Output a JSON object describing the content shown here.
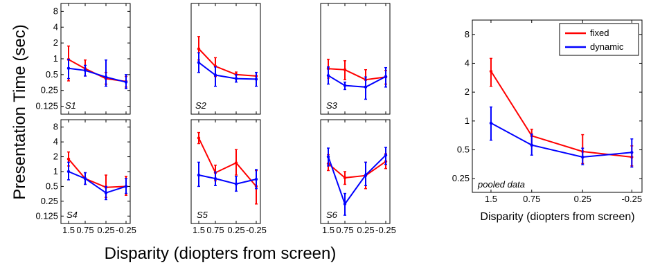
{
  "figure": {
    "ylabel": "Presentation Time (sec)",
    "xlabel": "Disparity (diopters from screen)",
    "pooled_xlabel": "Disparity (diopters from screen)"
  },
  "chart_data": [
    {
      "type": "line",
      "panel_label": "S1",
      "x": [
        "1.5",
        "0.75",
        "0.25",
        "-0.25"
      ],
      "ylim": [
        0.0884,
        11.3
      ],
      "yscale": "log",
      "yticks": [
        "8",
        "4",
        "2",
        "1",
        "0.5",
        "0.25",
        "0.125"
      ],
      "show_xticks": false,
      "series": [
        {
          "values": [
            0.97,
            0.65,
            0.42,
            0.37
          ],
          "err_low": [
            0.38,
            0.47,
            0.33,
            0.29
          ],
          "err_high": [
            1.75,
            0.95,
            0.55,
            0.46
          ],
          "color": "#ff0000"
        },
        {
          "values": [
            0.66,
            0.6,
            0.45,
            0.36
          ],
          "err_low": [
            0.42,
            0.47,
            0.3,
            0.27
          ],
          "err_high": [
            0.98,
            0.75,
            0.95,
            0.5
          ],
          "color": "#0000ff"
        }
      ]
    },
    {
      "type": "line",
      "panel_label": "S2",
      "x": [
        "1.5",
        "0.75",
        "0.25",
        "-0.25"
      ],
      "ylim": [
        0.0884,
        11.3
      ],
      "yscale": "log",
      "yticks": [],
      "show_xticks": false,
      "series": [
        {
          "values": [
            1.55,
            0.72,
            0.5,
            0.47
          ],
          "err_low": [
            0.95,
            0.46,
            0.43,
            0.4
          ],
          "err_high": [
            2.65,
            1.05,
            0.56,
            0.55
          ],
          "color": "#ff0000"
        },
        {
          "values": [
            0.85,
            0.49,
            0.42,
            0.41
          ],
          "err_low": [
            0.55,
            0.3,
            0.36,
            0.3
          ],
          "err_high": [
            1.3,
            0.7,
            0.5,
            0.55
          ],
          "color": "#0000ff"
        }
      ]
    },
    {
      "type": "line",
      "panel_label": "S3",
      "x": [
        "1.5",
        "0.75",
        "0.25",
        "-0.25"
      ],
      "ylim": [
        0.0884,
        11.3
      ],
      "yscale": "log",
      "yticks": [],
      "show_xticks": false,
      "series": [
        {
          "values": [
            0.65,
            0.62,
            0.4,
            0.45
          ],
          "err_low": [
            0.43,
            0.4,
            0.3,
            0.33
          ],
          "err_high": [
            0.98,
            0.92,
            0.62,
            0.6
          ],
          "color": "#ff0000"
        },
        {
          "values": [
            0.48,
            0.31,
            0.29,
            0.46
          ],
          "err_low": [
            0.33,
            0.26,
            0.17,
            0.29
          ],
          "err_high": [
            0.7,
            0.36,
            0.45,
            0.68
          ],
          "color": "#0000ff"
        }
      ]
    },
    {
      "type": "line",
      "panel_label": "S4",
      "x": [
        "1.5",
        "0.75",
        "0.25",
        "-0.25"
      ],
      "ylim": [
        0.0884,
        11.3
      ],
      "yscale": "log",
      "yticks": [
        "8",
        "4",
        "2",
        "1",
        "0.5",
        "0.25",
        "0.125"
      ],
      "show_xticks": true,
      "series": [
        {
          "values": [
            1.8,
            0.72,
            0.48,
            0.5
          ],
          "err_low": [
            1.3,
            0.55,
            0.3,
            0.33
          ],
          "err_high": [
            2.5,
            0.95,
            0.85,
            0.8
          ],
          "color": "#ff0000"
        },
        {
          "values": [
            1.0,
            0.72,
            0.37,
            0.5
          ],
          "err_low": [
            0.68,
            0.55,
            0.27,
            0.36
          ],
          "err_high": [
            1.55,
            0.95,
            0.5,
            0.72
          ],
          "color": "#0000ff"
        }
      ]
    },
    {
      "type": "line",
      "panel_label": "S5",
      "x": [
        "1.5",
        "0.75",
        "0.25",
        "-0.25"
      ],
      "ylim": [
        0.0884,
        11.3
      ],
      "yscale": "log",
      "yticks": [],
      "show_xticks": true,
      "series": [
        {
          "values": [
            4.8,
            0.95,
            1.5,
            0.5
          ],
          "err_low": [
            3.7,
            0.65,
            0.85,
            0.22
          ],
          "err_high": [
            6.2,
            1.35,
            2.8,
            1.05
          ],
          "color": "#ff0000"
        },
        {
          "values": [
            0.85,
            0.72,
            0.56,
            0.7
          ],
          "err_low": [
            0.5,
            0.52,
            0.4,
            0.45
          ],
          "err_high": [
            1.55,
            0.98,
            0.8,
            1.1
          ],
          "color": "#0000ff"
        }
      ]
    },
    {
      "type": "line",
      "panel_label": "S6",
      "x": [
        "1.5",
        "0.75",
        "0.25",
        "-0.25"
      ],
      "ylim": [
        0.0884,
        11.3
      ],
      "yscale": "log",
      "yticks": [],
      "show_xticks": true,
      "series": [
        {
          "values": [
            1.45,
            0.75,
            0.83,
            1.6
          ],
          "err_low": [
            1.05,
            0.55,
            0.45,
            1.15
          ],
          "err_high": [
            2.2,
            1.0,
            1.55,
            2.3
          ],
          "color": "#ff0000"
        },
        {
          "values": [
            2.0,
            0.22,
            0.85,
            2.15
          ],
          "err_low": [
            1.3,
            0.13,
            0.52,
            1.4
          ],
          "err_high": [
            3.0,
            0.36,
            1.55,
            3.1
          ],
          "color": "#0000ff"
        }
      ]
    },
    {
      "type": "line",
      "panel_label": "pooled data",
      "x": [
        "1.5",
        "0.75",
        "0.25",
        "-0.25"
      ],
      "ylim": [
        0.18,
        11.3
      ],
      "yscale": "log",
      "yticks": [
        "8",
        "4",
        "2",
        "1",
        "0.5",
        "0.25"
      ],
      "show_xticks": true,
      "legend": {
        "position": "top-right",
        "entries": [
          "fixed",
          "dynamic"
        ]
      },
      "series": [
        {
          "name": "fixed",
          "values": [
            3.3,
            0.7,
            0.48,
            0.42
          ],
          "err_low": [
            2.3,
            0.55,
            0.36,
            0.34
          ],
          "err_high": [
            4.5,
            0.82,
            0.72,
            0.55
          ],
          "color": "#ff0000"
        },
        {
          "name": "dynamic",
          "values": [
            0.95,
            0.56,
            0.42,
            0.47
          ],
          "err_low": [
            0.63,
            0.44,
            0.35,
            0.33
          ],
          "err_high": [
            1.4,
            0.73,
            0.52,
            0.65
          ],
          "color": "#0000ff"
        }
      ]
    }
  ]
}
